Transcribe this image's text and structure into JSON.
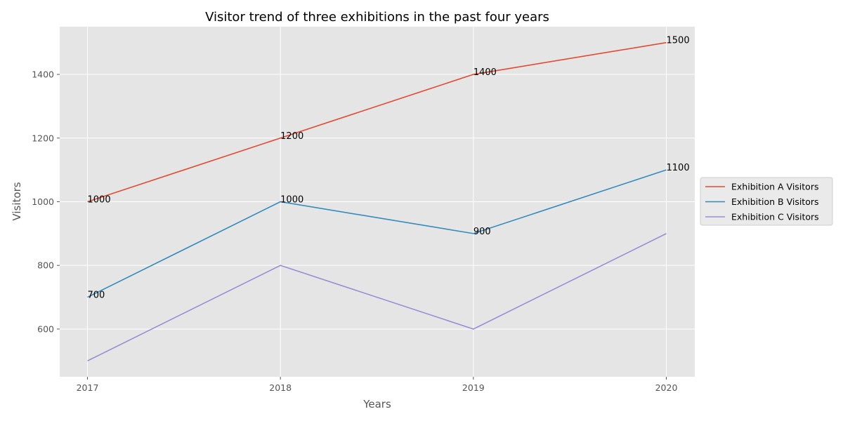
{
  "chart_data": {
    "type": "line",
    "title": "Visitor trend of three exhibitions in the past four years",
    "xlabel": "Years",
    "ylabel": "Visitors",
    "x": [
      "2017",
      "2018",
      "2019",
      "2020"
    ],
    "ylim": [
      450,
      1550
    ],
    "yticks": [
      600,
      800,
      1000,
      1200,
      1400
    ],
    "grid": true,
    "legend_position": "right",
    "series": [
      {
        "name": "Exhibition A Visitors",
        "color": "#E24A33",
        "values": [
          1000,
          1200,
          1400,
          1500
        ],
        "labels": [
          "1000",
          "1200",
          "1400",
          "1500"
        ]
      },
      {
        "name": "Exhibition B Visitors",
        "color": "#348ABD",
        "values": [
          700,
          1000,
          900,
          1100
        ],
        "labels": [
          "700",
          "1000",
          "900",
          "1100"
        ]
      },
      {
        "name": "Exhibition C Visitors",
        "color": "#988ED5",
        "values": [
          500,
          800,
          600,
          900
        ],
        "labels": []
      }
    ]
  }
}
